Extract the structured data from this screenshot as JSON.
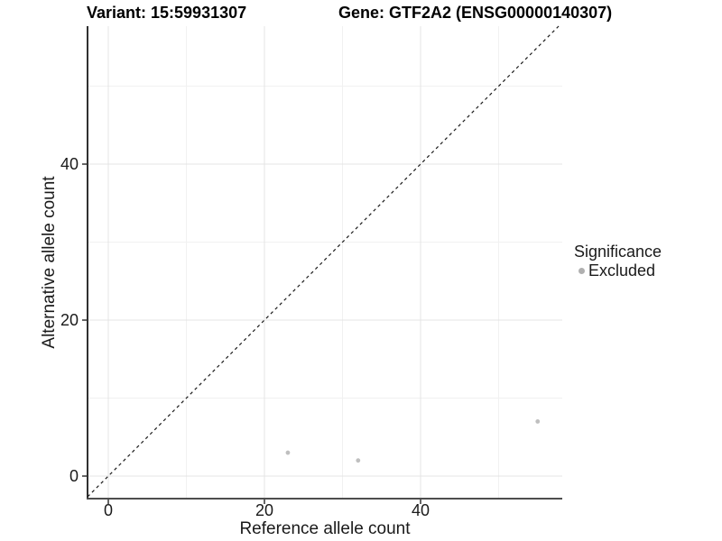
{
  "chart_data": {
    "type": "scatter",
    "title_left": "Variant: 15:59931307",
    "title_right": "Gene: GTF2A2 (ENSG00000140307)",
    "xlabel": "Reference allele count",
    "ylabel": "Alternative allele count",
    "x_ticks": [
      0,
      20,
      40
    ],
    "y_ticks": [
      0,
      20,
      40
    ],
    "x_minor_ticks": [
      10,
      30,
      50
    ],
    "y_minor_ticks": [
      10,
      30,
      50
    ],
    "xlim": [
      -2.66,
      58.15
    ],
    "ylim": [
      -2.89,
      57.69
    ],
    "grid": true,
    "legend_position": "right",
    "identity_line": {
      "slope": 1,
      "intercept": 0,
      "style": "dashed"
    },
    "series": [
      {
        "name": "Excluded",
        "points": [
          {
            "x": 23,
            "y": 3
          },
          {
            "x": 32,
            "y": 2
          },
          {
            "x": 55,
            "y": 7
          }
        ]
      }
    ],
    "legend": {
      "title": "Significance",
      "entries": [
        {
          "label": "Excluded"
        }
      ]
    }
  },
  "colors": {
    "point": "#bfbfbf",
    "legend_point": "#b0b0b0",
    "identity_line": "#1a1a1a",
    "grid_major": "#e4e4e4",
    "grid_minor": "#f1f1f1",
    "axis_line_left": "#1a1a1a",
    "axis_line_bottom": "#4d4d4d",
    "tick": "#333333",
    "text": "#1a1a1a"
  }
}
